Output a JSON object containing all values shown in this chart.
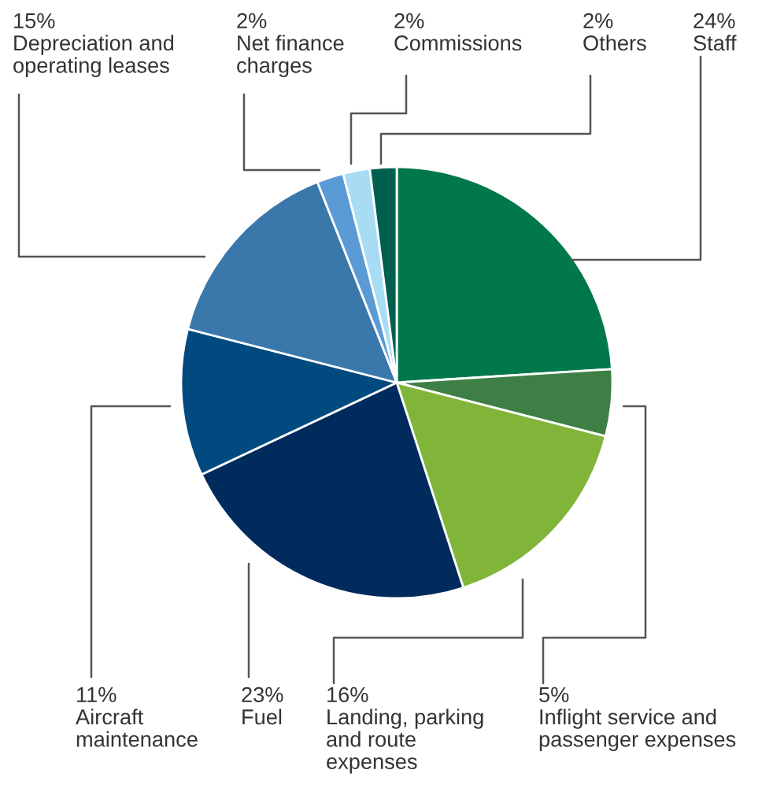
{
  "chart_data": {
    "type": "pie",
    "categories": [
      "Staff",
      "Inflight service and\npassenger expenses",
      "Landing, parking\nand route\nexpenses",
      "Fuel",
      "Aircraft\nmaintenance",
      "Depreciation and\noperating leases",
      "Net finance\ncharges",
      "Commissions",
      "Others"
    ],
    "values": [
      24,
      5,
      16,
      23,
      11,
      15,
      2,
      2,
      2
    ],
    "value_labels": [
      "24%",
      "5%",
      "16%",
      "23%",
      "11%",
      "15%",
      "2%",
      "2%",
      "2%"
    ],
    "colors": [
      "#00784a",
      "#3d7f45",
      "#80b539",
      "#002b5c",
      "#004a80",
      "#3a78ac",
      "#5b9bd5",
      "#a8dcf5",
      "#006050"
    ]
  }
}
